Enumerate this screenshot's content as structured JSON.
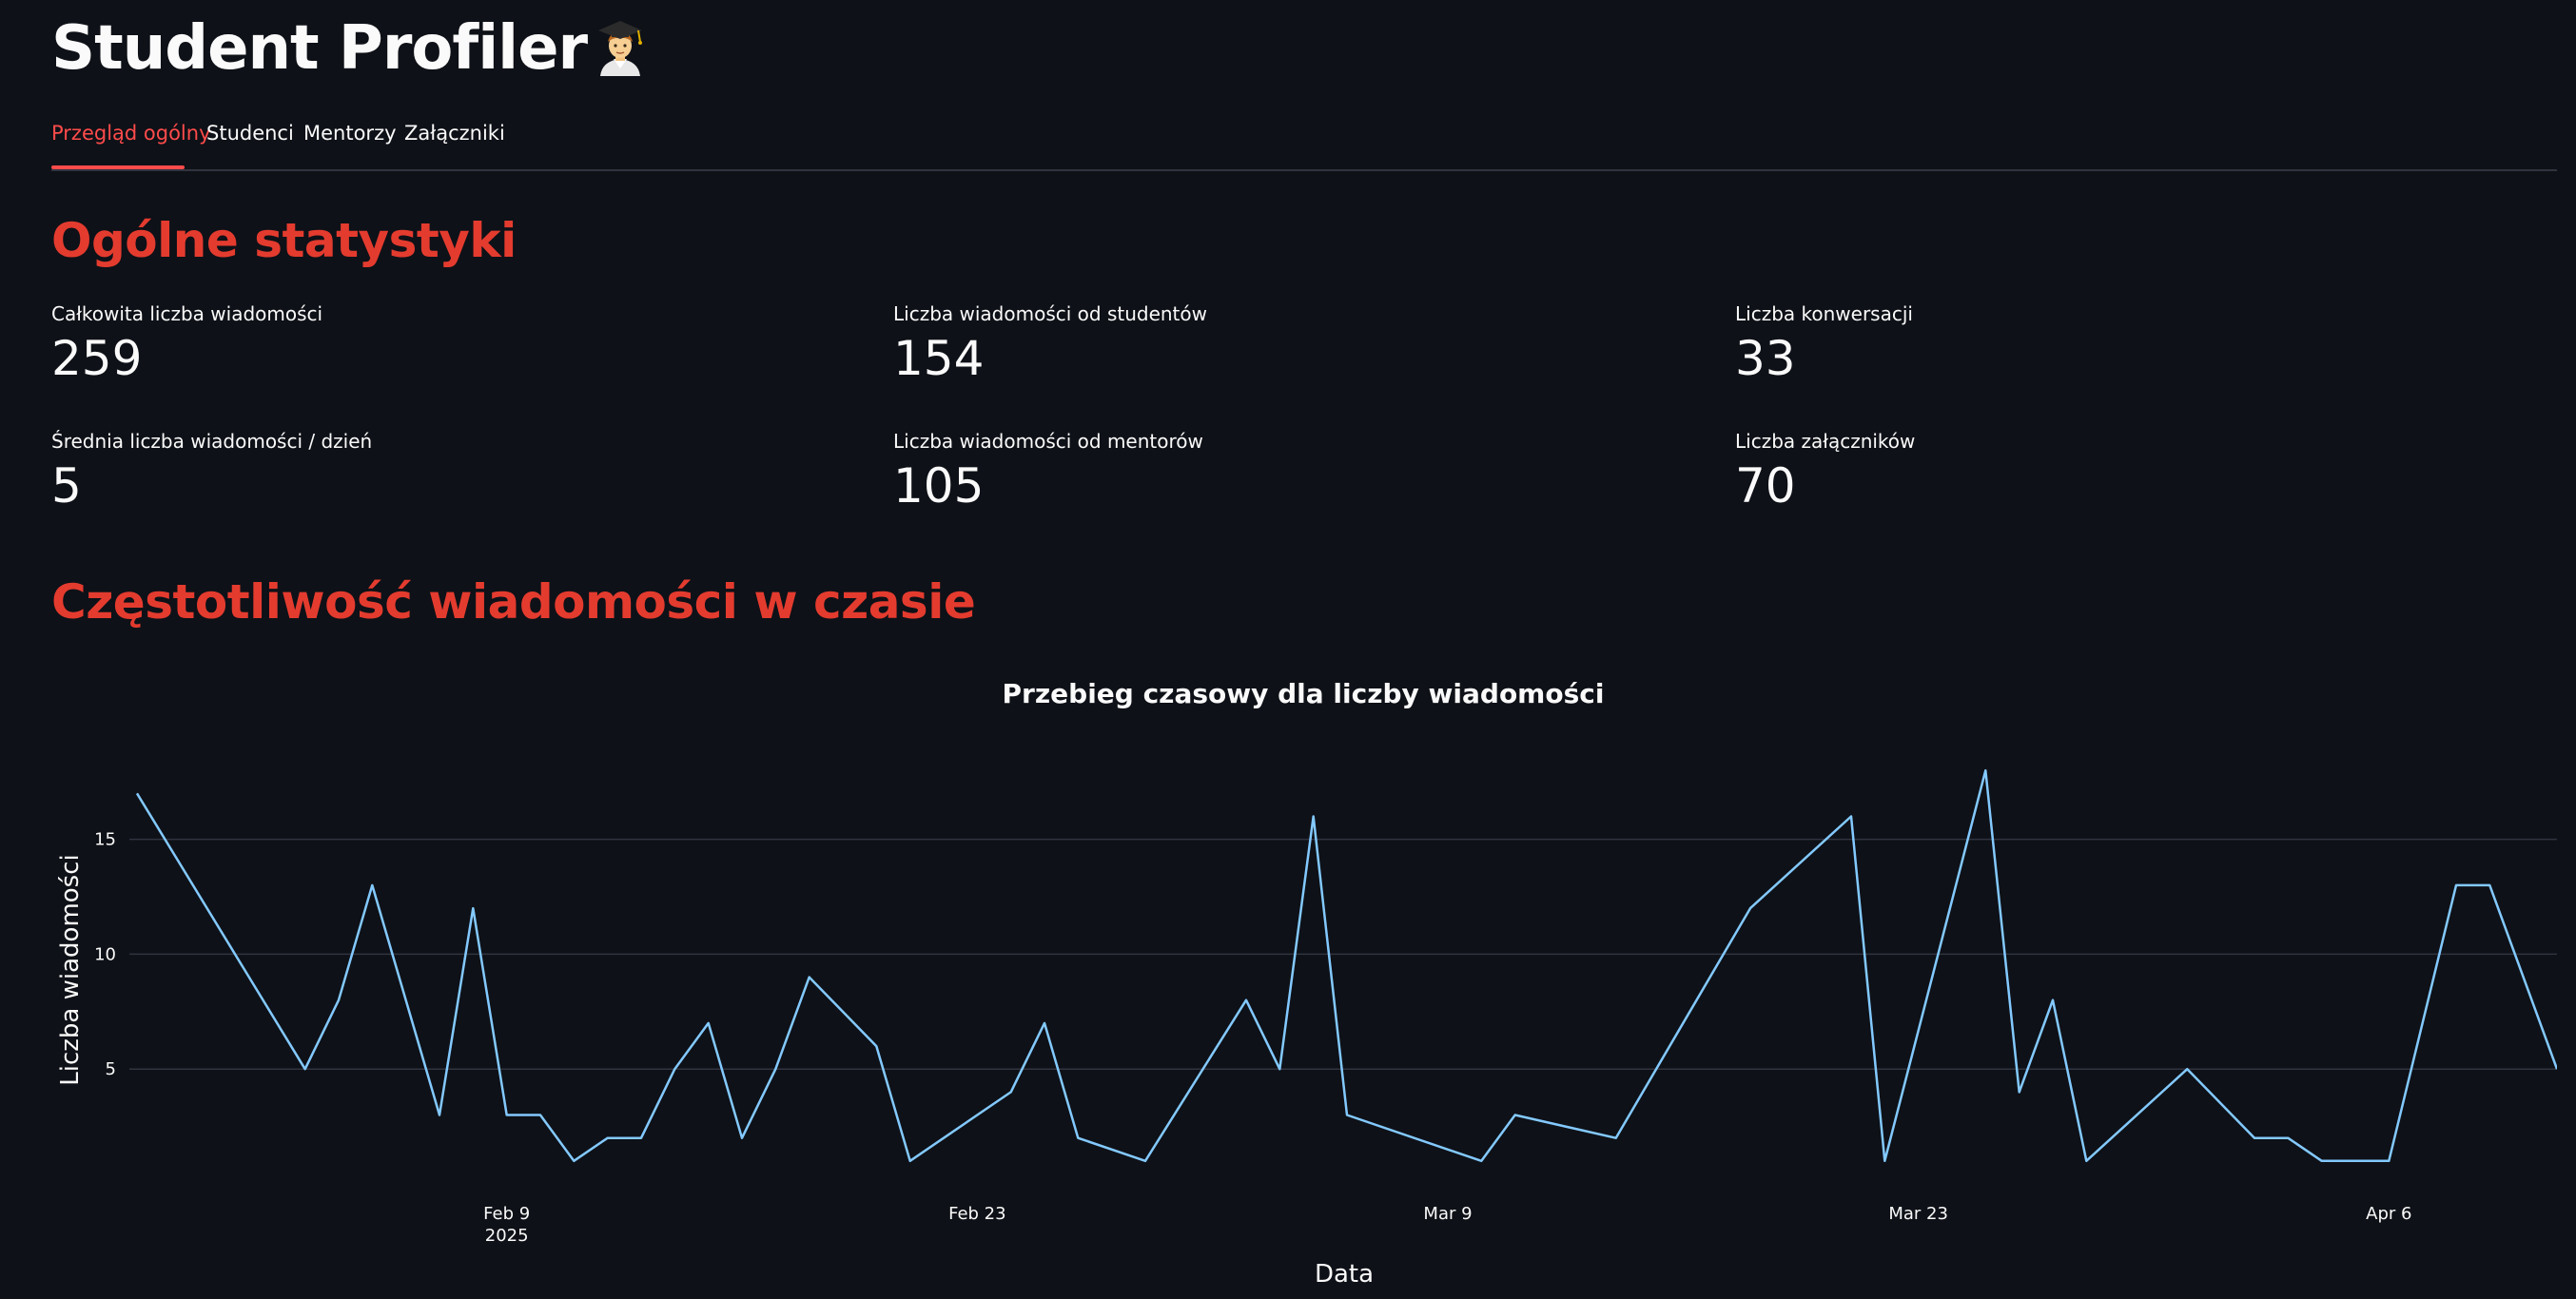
{
  "app": {
    "title": "Student Profiler",
    "title_icon": "student-graduate-emoji"
  },
  "tabs": [
    {
      "label": "Przegląd ogólny",
      "active": true
    },
    {
      "label": "Studenci",
      "active": false
    },
    {
      "label": "Mentorzy",
      "active": false
    },
    {
      "label": "Załączniki",
      "active": false
    }
  ],
  "sections": {
    "stats_heading": "Ogólne statystyki",
    "chart_heading": "Częstotliwość wiadomości w czasie"
  },
  "metrics": [
    {
      "label": "Całkowita liczba wiadomości",
      "value": "259"
    },
    {
      "label": "Liczba wiadomości od studentów",
      "value": "154"
    },
    {
      "label": "Liczba konwersacji",
      "value": "33"
    },
    {
      "label": "Średnia liczba wiadomości / dzień",
      "value": "5"
    },
    {
      "label": "Liczba wiadomości od mentorów",
      "value": "105"
    },
    {
      "label": "Liczba załączników",
      "value": "70"
    }
  ],
  "colors": {
    "background": "#0e1117",
    "accent": "#ff4b4b",
    "heading": "#e43b2f",
    "line": "#83c9ff",
    "grid": "#31333f"
  },
  "chart_data": {
    "type": "line",
    "title": "Przebieg czasowy dla liczby wiadomości",
    "xlabel": "Data",
    "ylabel": "Liczba wiadomości",
    "x_ticks": [
      {
        "label": "Feb 9",
        "sublabel": "2025",
        "date": "2025-02-09"
      },
      {
        "label": "Feb 23",
        "sublabel": "",
        "date": "2025-02-23"
      },
      {
        "label": "Mar 9",
        "sublabel": "",
        "date": "2025-03-09"
      },
      {
        "label": "Mar 23",
        "sublabel": "",
        "date": "2025-03-23"
      },
      {
        "label": "Apr 6",
        "sublabel": "",
        "date": "2025-04-06"
      }
    ],
    "y_ticks": [
      5,
      10,
      15
    ],
    "ylim": [
      0,
      19
    ],
    "xlim": [
      "2025-01-29",
      "2025-04-11"
    ],
    "grid": true,
    "legend": false,
    "series": [
      {
        "color": "#83c9ff",
        "points": [
          {
            "x": "2025-01-29",
            "y": 17
          },
          {
            "x": "2025-02-03",
            "y": 5
          },
          {
            "x": "2025-02-04",
            "y": 8
          },
          {
            "x": "2025-02-05",
            "y": 13
          },
          {
            "x": "2025-02-07",
            "y": 3
          },
          {
            "x": "2025-02-08",
            "y": 12
          },
          {
            "x": "2025-02-09",
            "y": 3
          },
          {
            "x": "2025-02-10",
            "y": 3
          },
          {
            "x": "2025-02-11",
            "y": 1
          },
          {
            "x": "2025-02-12",
            "y": 2
          },
          {
            "x": "2025-02-13",
            "y": 2
          },
          {
            "x": "2025-02-14",
            "y": 5
          },
          {
            "x": "2025-02-15",
            "y": 7
          },
          {
            "x": "2025-02-16",
            "y": 2
          },
          {
            "x": "2025-02-17",
            "y": 5
          },
          {
            "x": "2025-02-18",
            "y": 9
          },
          {
            "x": "2025-02-20",
            "y": 6
          },
          {
            "x": "2025-02-21",
            "y": 1
          },
          {
            "x": "2025-02-24",
            "y": 4
          },
          {
            "x": "2025-02-25",
            "y": 7
          },
          {
            "x": "2025-02-26",
            "y": 2
          },
          {
            "x": "2025-02-28",
            "y": 1
          },
          {
            "x": "2025-03-03",
            "y": 8
          },
          {
            "x": "2025-03-04",
            "y": 5
          },
          {
            "x": "2025-03-05",
            "y": 16
          },
          {
            "x": "2025-03-06",
            "y": 3
          },
          {
            "x": "2025-03-10",
            "y": 1
          },
          {
            "x": "2025-03-11",
            "y": 3
          },
          {
            "x": "2025-03-14",
            "y": 2
          },
          {
            "x": "2025-03-18",
            "y": 12
          },
          {
            "x": "2025-03-21",
            "y": 16
          },
          {
            "x": "2025-03-22",
            "y": 1
          },
          {
            "x": "2025-03-25",
            "y": 18
          },
          {
            "x": "2025-03-26",
            "y": 4
          },
          {
            "x": "2025-03-27",
            "y": 8
          },
          {
            "x": "2025-03-28",
            "y": 1
          },
          {
            "x": "2025-03-31",
            "y": 5
          },
          {
            "x": "2025-04-02",
            "y": 2
          },
          {
            "x": "2025-04-03",
            "y": 2
          },
          {
            "x": "2025-04-04",
            "y": 1
          },
          {
            "x": "2025-04-06",
            "y": 1
          },
          {
            "x": "2025-04-08",
            "y": 13
          },
          {
            "x": "2025-04-09",
            "y": 13
          },
          {
            "x": "2025-04-11",
            "y": 5
          }
        ]
      }
    ]
  }
}
